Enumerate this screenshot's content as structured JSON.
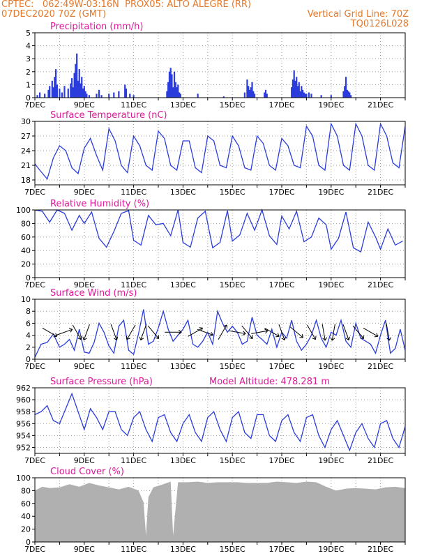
{
  "header": {
    "line1_left": "CPTEC:   062:49W-03:16N  PROX05: ALTO ALEGRE (RR)",
    "line2_left": "07DEC2020 70Z (GMT)",
    "line2_right": "Vertical Grid Line: 70Z",
    "line3_right": "TQ0126L028"
  },
  "colors": {
    "header": "#e4782a",
    "title": "#e0189a",
    "series": "#2a3cdc",
    "cloud": "#b0b0b0"
  },
  "x_axis": {
    "ticks": [
      "7DEC",
      "9DEC",
      "11DEC",
      "13DEC",
      "15DEC",
      "17DEC",
      "19DEC",
      "21DEC"
    ],
    "range_days": [
      7,
      22
    ]
  },
  "chart_data": [
    {
      "type": "bar",
      "title": "Precipitation (mm/h)",
      "ylim": [
        0,
        5
      ],
      "yticks": [
        "0",
        "1",
        "2",
        "3",
        "4",
        "5"
      ],
      "x": [
        7.1,
        7.2,
        7.4,
        7.55,
        7.6,
        7.7,
        7.75,
        7.8,
        7.85,
        7.9,
        8.0,
        8.1,
        8.2,
        8.35,
        8.45,
        8.5,
        8.55,
        8.6,
        8.65,
        8.7,
        8.75,
        8.8,
        8.85,
        8.9,
        8.95,
        9.0,
        9.05,
        9.1,
        9.2,
        9.5,
        9.6,
        9.7,
        10.0,
        10.2,
        10.4,
        10.65,
        10.7,
        10.85,
        11.0,
        12.35,
        12.4,
        12.45,
        12.5,
        12.55,
        12.6,
        12.65,
        12.7,
        12.75,
        12.8,
        12.85,
        12.9,
        13.6,
        14.65,
        15.5,
        15.6,
        15.65,
        15.7,
        15.75,
        15.8,
        15.85,
        15.9,
        16.3,
        16.35,
        16.4,
        17.4,
        17.45,
        17.5,
        17.55,
        17.6,
        17.65,
        17.7,
        17.75,
        17.8,
        17.85,
        17.9,
        17.95,
        18.0,
        18.1,
        18.2,
        18.6,
        19.0,
        19.5,
        19.55,
        19.6,
        19.65,
        19.7,
        19.75,
        19.8
      ],
      "values": [
        0.2,
        0.4,
        0.3,
        0.6,
        0.9,
        1.3,
        0.8,
        1.6,
        2.2,
        1.0,
        0.7,
        0.4,
        0.9,
        0.7,
        1.1,
        1.5,
        0.8,
        1.9,
        2.6,
        3.4,
        1.3,
        2.2,
        1.1,
        1.6,
        0.7,
        0.9,
        0.5,
        0.3,
        0.2,
        0.3,
        0.6,
        0.2,
        0.3,
        0.4,
        0.5,
        1.0,
        0.7,
        0.3,
        0.2,
        0.5,
        1.2,
        2.0,
        2.3,
        1.8,
        0.8,
        2.0,
        1.2,
        0.8,
        1.0,
        0.4,
        0.3,
        0.3,
        0.1,
        0.4,
        1.4,
        0.9,
        0.6,
        0.8,
        1.2,
        0.5,
        0.3,
        0.4,
        0.6,
        0.3,
        0.8,
        1.4,
        2.1,
        1.3,
        1.6,
        0.9,
        1.2,
        0.5,
        0.9,
        0.6,
        0.4,
        0.3,
        0.3,
        0.4,
        0.3,
        0.2,
        0.2,
        0.5,
        0.9,
        1.6,
        0.6,
        0.5,
        0.4,
        0.2
      ]
    },
    {
      "type": "line",
      "title": "Surface Temperature (nC)",
      "ylim": [
        17,
        30
      ],
      "yticks": [
        "18",
        "21",
        "24",
        "27",
        "30"
      ],
      "x": [
        7.0,
        7.2,
        7.5,
        7.75,
        8.0,
        8.25,
        8.5,
        8.75,
        9.0,
        9.25,
        9.5,
        9.75,
        10.0,
        10.25,
        10.5,
        10.75,
        11.0,
        11.25,
        11.5,
        11.75,
        12.0,
        12.25,
        12.5,
        12.75,
        13.0,
        13.25,
        13.5,
        13.75,
        14.0,
        14.25,
        14.5,
        14.75,
        15.0,
        15.25,
        15.5,
        15.75,
        16.0,
        16.25,
        16.5,
        16.75,
        17.0,
        17.25,
        17.5,
        17.75,
        18.0,
        18.25,
        18.5,
        18.75,
        19.0,
        19.25,
        19.5,
        19.75,
        20.0,
        20.25,
        20.5,
        20.75,
        21.0,
        21.25,
        21.5,
        21.75,
        22.0
      ],
      "values": [
        21.3,
        20.0,
        18.2,
        22.5,
        25.0,
        24.0,
        20.5,
        19.3,
        24.5,
        26.5,
        23.0,
        20.0,
        28.5,
        26.0,
        21.0,
        19.5,
        27.0,
        25.0,
        21.0,
        20.0,
        28.0,
        26.5,
        21.0,
        20.0,
        26.0,
        26.0,
        20.5,
        19.5,
        27.0,
        26.0,
        21.0,
        20.5,
        27.0,
        25.0,
        20.5,
        20.0,
        27.0,
        25.5,
        21.0,
        20.0,
        26.5,
        25.0,
        21.0,
        20.5,
        29.0,
        27.0,
        21.0,
        20.0,
        29.5,
        27.0,
        21.0,
        20.0,
        29.5,
        27.0,
        21.0,
        20.0,
        29.5,
        27.0,
        21.5,
        20.5,
        29.0
      ]
    },
    {
      "type": "line",
      "title": "Relative Humidity (%)",
      "ylim": [
        0,
        100
      ],
      "yticks": [
        "0",
        "20",
        "40",
        "60",
        "80",
        "100"
      ],
      "x": [
        7.0,
        7.3,
        7.6,
        7.9,
        8.2,
        8.5,
        8.8,
        9.0,
        9.3,
        9.6,
        9.9,
        10.2,
        10.5,
        10.8,
        11.0,
        11.3,
        11.6,
        11.9,
        12.2,
        12.5,
        12.8,
        13.0,
        13.3,
        13.6,
        13.9,
        14.2,
        14.5,
        14.8,
        15.0,
        15.3,
        15.6,
        15.9,
        16.2,
        16.5,
        16.8,
        17.0,
        17.3,
        17.6,
        17.9,
        18.2,
        18.5,
        18.8,
        19.0,
        19.3,
        19.6,
        19.9,
        20.2,
        20.5,
        20.8,
        21.0,
        21.3,
        21.6,
        21.9
      ],
      "values": [
        100,
        98,
        82,
        100,
        95,
        70,
        92,
        80,
        97,
        58,
        45,
        68,
        95,
        99,
        55,
        48,
        92,
        78,
        80,
        62,
        100,
        52,
        45,
        88,
        98,
        44,
        52,
        99,
        54,
        63,
        95,
        70,
        100,
        62,
        49,
        91,
        72,
        98,
        53,
        60,
        88,
        78,
        42,
        58,
        97,
        44,
        38,
        82,
        60,
        42,
        72,
        48,
        54
      ]
    },
    {
      "type": "line",
      "title": "Surface Wind (m/s)",
      "ylim": [
        0,
        10
      ],
      "yticks": [
        "0",
        "2",
        "4",
        "6",
        "8",
        "10"
      ],
      "x": [
        7.0,
        7.25,
        7.5,
        7.75,
        8.0,
        8.2,
        8.4,
        8.6,
        8.8,
        9.0,
        9.2,
        9.4,
        9.6,
        9.8,
        10.0,
        10.2,
        10.4,
        10.6,
        10.8,
        11.0,
        11.2,
        11.4,
        11.6,
        11.8,
        12.0,
        12.2,
        12.4,
        12.6,
        12.8,
        13.0,
        13.2,
        13.4,
        13.6,
        13.8,
        14.0,
        14.2,
        14.4,
        14.6,
        14.8,
        15.0,
        15.2,
        15.4,
        15.6,
        15.8,
        16.0,
        16.2,
        16.4,
        16.6,
        16.8,
        17.0,
        17.2,
        17.4,
        17.6,
        17.8,
        18.0,
        18.2,
        18.4,
        18.6,
        18.8,
        19.0,
        19.2,
        19.4,
        19.6,
        19.8,
        20.0,
        20.2,
        20.4,
        20.6,
        20.8,
        21.0,
        21.2,
        21.4,
        21.6,
        21.8,
        22.0
      ],
      "values": [
        0.3,
        2.5,
        2.8,
        4.2,
        2.0,
        2.5,
        3.3,
        1.5,
        5.0,
        1.2,
        1.0,
        2.8,
        6.0,
        4.5,
        2.2,
        1.0,
        5.5,
        6.5,
        1.5,
        0.8,
        4.3,
        8.3,
        2.5,
        3.0,
        5.2,
        8.0,
        5.0,
        3.0,
        4.0,
        5.0,
        6.5,
        2.5,
        2.0,
        3.0,
        4.5,
        2.5,
        8.0,
        6.0,
        4.5,
        5.5,
        4.5,
        2.5,
        3.0,
        7.0,
        4.0,
        3.3,
        2.5,
        5.0,
        2.0,
        4.5,
        3.5,
        6.5,
        3.0,
        1.5,
        2.5,
        4.0,
        6.5,
        3.5,
        2.0,
        4.5,
        4.0,
        6.5,
        3.0,
        2.0,
        6.0,
        3.5,
        3.0,
        2.5,
        1.0,
        4.0,
        6.5,
        1.0,
        1.8,
        5.0,
        1.5
      ]
    },
    {
      "type": "line",
      "title": "Surface Pressure (hPa)",
      "annotation": "Model Altitude: 478.281 m",
      "ylim": [
        951,
        962
      ],
      "yticks": [
        "952",
        "954",
        "956",
        "958",
        "960",
        "962"
      ],
      "x": [
        7.0,
        7.25,
        7.5,
        7.75,
        8.0,
        8.25,
        8.5,
        8.75,
        9.0,
        9.25,
        9.5,
        9.75,
        10.0,
        10.25,
        10.5,
        10.75,
        11.0,
        11.25,
        11.5,
        11.75,
        12.0,
        12.25,
        12.5,
        12.75,
        13.0,
        13.25,
        13.5,
        13.75,
        14.0,
        14.25,
        14.5,
        14.75,
        15.0,
        15.25,
        15.5,
        15.75,
        16.0,
        16.25,
        16.5,
        16.75,
        17.0,
        17.25,
        17.5,
        17.75,
        18.0,
        18.25,
        18.5,
        18.75,
        19.0,
        19.25,
        19.5,
        19.75,
        20.0,
        20.25,
        20.5,
        20.75,
        21.0,
        21.25,
        21.5,
        21.75,
        22.0
      ],
      "values": [
        957.5,
        958.0,
        959.0,
        956.5,
        956.0,
        958.5,
        961.0,
        958.0,
        955.0,
        958.5,
        957.0,
        955.0,
        958.0,
        958.0,
        955.0,
        954.0,
        957.0,
        958.0,
        955.0,
        953.0,
        957.0,
        957.5,
        954.5,
        953.0,
        956.0,
        957.5,
        954.5,
        953.0,
        957.0,
        958.0,
        955.0,
        953.0,
        957.0,
        958.0,
        954.5,
        953.5,
        957.5,
        957.5,
        954.0,
        953.0,
        956.5,
        957.5,
        954.5,
        953.0,
        957.0,
        957.5,
        954.0,
        952.0,
        955.0,
        956.5,
        954.0,
        951.5,
        954.5,
        956.0,
        953.5,
        952.0,
        956.0,
        956.5,
        953.5,
        952.0,
        955.5
      ]
    },
    {
      "type": "area",
      "title": "Cloud Cover (%)",
      "ylim": [
        0,
        100
      ],
      "yticks": [
        "0",
        "20",
        "40",
        "60",
        "80",
        "100"
      ],
      "x": [
        7.0,
        7.3,
        7.6,
        8.0,
        8.4,
        8.8,
        9.2,
        9.6,
        10.0,
        10.4,
        10.8,
        11.2,
        11.4,
        11.5,
        11.6,
        11.8,
        12.2,
        12.5,
        12.6,
        12.8,
        13.2,
        13.6,
        14.0,
        14.4,
        14.8,
        15.2,
        15.6,
        16.0,
        16.4,
        16.8,
        17.2,
        17.6,
        18.0,
        18.4,
        18.8,
        19.2,
        19.6,
        20.0,
        20.4,
        20.8,
        21.2,
        21.6,
        22.0
      ],
      "values": [
        80,
        86,
        84,
        85,
        90,
        86,
        92,
        88,
        85,
        82,
        86,
        80,
        62,
        10,
        70,
        85,
        90,
        94,
        10,
        93,
        93,
        94,
        92,
        93,
        93,
        93,
        92,
        92,
        92,
        94,
        93,
        92,
        94,
        93,
        86,
        80,
        83,
        84,
        83,
        82,
        85,
        86,
        84
      ]
    }
  ],
  "wind_arrows": {
    "x": [
      7.6,
      8.2,
      8.7,
      9.1,
      10.2,
      10.9,
      11.4,
      11.8,
      12.6,
      13.5,
      13.9,
      14.6,
      15.2,
      15.6,
      16.1,
      16.6,
      17.0,
      17.6,
      18.2,
      18.7,
      19.1,
      19.6,
      20.1,
      20.6,
      21.3
    ],
    "dir_deg": [
      120,
      70,
      150,
      200,
      160,
      210,
      200,
      140,
      90,
      60,
      110,
      30,
      100,
      140,
      80,
      120,
      160,
      130,
      150,
      170,
      190,
      160,
      140,
      120,
      170
    ]
  }
}
